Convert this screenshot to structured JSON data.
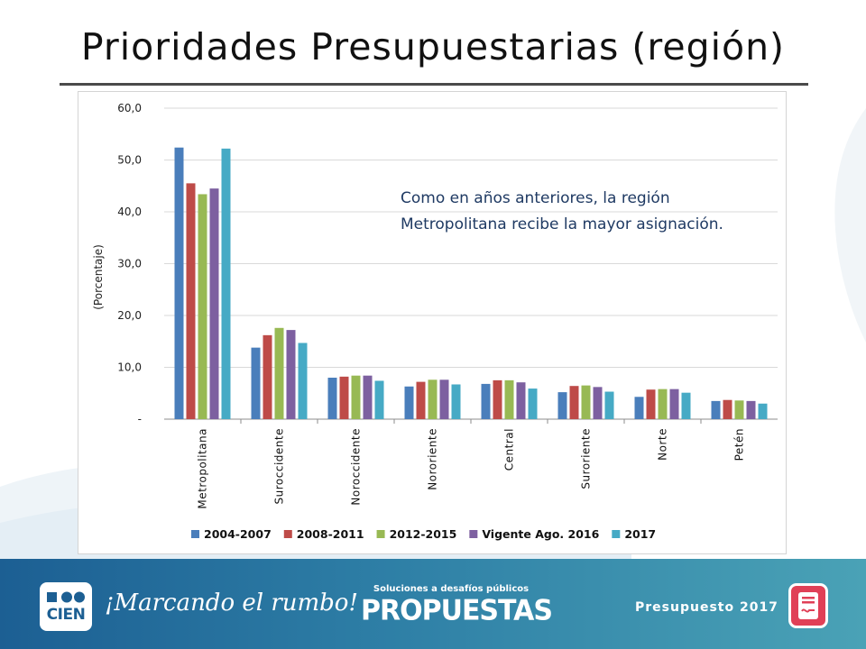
{
  "title": "Prioridades Presupuestarias (región)",
  "annotation": {
    "line1": "Como en años anteriores, la región",
    "line2": "Metropolitana recibe la mayor asignación."
  },
  "chart_data": {
    "type": "bar",
    "title": "",
    "xlabel": "",
    "ylabel": "(Porcentaje)",
    "ylim": [
      0,
      60
    ],
    "yticks": [
      0,
      10,
      20,
      30,
      40,
      50,
      60
    ],
    "ytick_labels": [
      "-",
      "10,0",
      "20,0",
      "30,0",
      "40,0",
      "50,0",
      "60,0"
    ],
    "grid": true,
    "legend_position": "bottom",
    "categories": [
      "Metropolitana",
      "Suroccidente",
      "Noroccidente",
      "Nororiente",
      "Central",
      "Suroriente",
      "Norte",
      "Petén"
    ],
    "series": [
      {
        "name": "2004-2007",
        "color": "#4a7ebb",
        "values": [
          52.4,
          13.8,
          8.0,
          6.3,
          6.8,
          5.2,
          4.3,
          3.5
        ]
      },
      {
        "name": "2008-2011",
        "color": "#be4b48",
        "values": [
          45.5,
          16.2,
          8.2,
          7.2,
          7.5,
          6.4,
          5.7,
          3.7
        ]
      },
      {
        "name": "2012-2015",
        "color": "#98b954",
        "values": [
          43.4,
          17.6,
          8.4,
          7.6,
          7.5,
          6.5,
          5.8,
          3.6
        ]
      },
      {
        "name": "Vigente Ago. 2016",
        "color": "#7d60a0",
        "values": [
          44.5,
          17.2,
          8.4,
          7.6,
          7.1,
          6.2,
          5.8,
          3.5
        ]
      },
      {
        "name": "2017",
        "color": "#46aac5",
        "values": [
          52.2,
          14.7,
          7.4,
          6.7,
          5.9,
          5.3,
          5.1,
          3.0
        ]
      }
    ]
  },
  "footer": {
    "logo_text": "CIEN",
    "slogan": "¡Marcando el rumbo!",
    "brand_subtitle": "Soluciones a desafíos públicos",
    "brand": "PROPUESTAS",
    "budget_label": "Presupuesto 2017"
  },
  "icons": {
    "logo": "cien-logo-icon",
    "document": "budget-document-icon"
  },
  "colors": {
    "footer_start": "#1c5f93",
    "footer_end": "#4aa2b6",
    "annotation": "#1f3a63",
    "doc_icon": "#e04057"
  }
}
